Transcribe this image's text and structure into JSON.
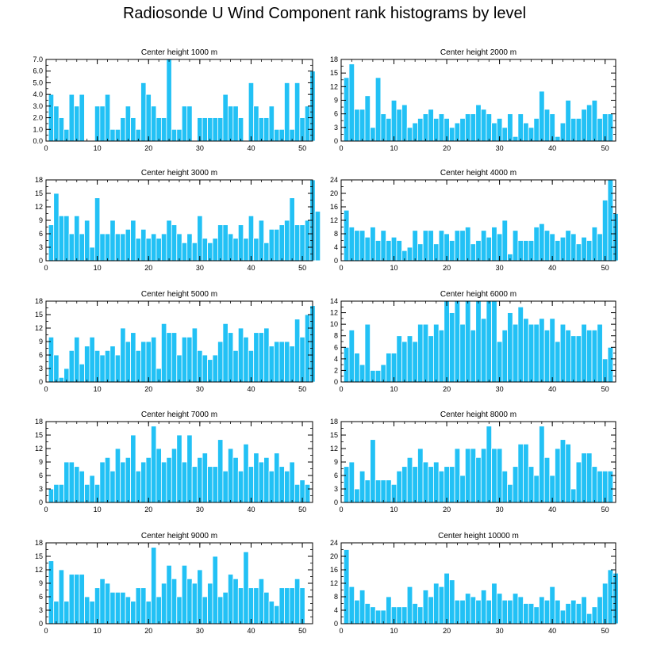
{
  "title": "Radiosonde U Wind Component rank histograms by level",
  "colors": {
    "bar": "#22c1f5",
    "bar_edge": "#ffffff",
    "axis": "#000000"
  },
  "chart_data": [
    {
      "type": "bar",
      "title": "Center height 1000 m",
      "xlim": [
        0,
        52
      ],
      "ylim": [
        0,
        7
      ],
      "xticks": [
        0,
        10,
        20,
        30,
        40,
        50
      ],
      "yticks": [
        0,
        1,
        2,
        3,
        4,
        5,
        6,
        7
      ],
      "ytick_labels": [
        "0.0",
        "1.0",
        "2.0",
        "3.0",
        "4.0",
        "5.0",
        "6.0",
        "7.0"
      ],
      "values": [
        4,
        3,
        2,
        1,
        4,
        3,
        4,
        0,
        0,
        3,
        3,
        4,
        1,
        1,
        2,
        3,
        2,
        1,
        5,
        4,
        3,
        2,
        2,
        7,
        1,
        1,
        3,
        3,
        0,
        2,
        2,
        2,
        2,
        2,
        4,
        3,
        3,
        2,
        0,
        5,
        3,
        2,
        2,
        3,
        1,
        1,
        5,
        1,
        5,
        2,
        3,
        6
      ]
    },
    {
      "type": "bar",
      "title": "Center height 2000 m",
      "xlim": [
        0,
        52
      ],
      "ylim": [
        0,
        18
      ],
      "xticks": [
        0,
        10,
        20,
        30,
        40,
        50
      ],
      "yticks": [
        0,
        3,
        6,
        9,
        12,
        15,
        18
      ],
      "ytick_labels": [
        "0",
        "3",
        "6",
        "9",
        "12",
        "15",
        "18"
      ],
      "values": [
        14,
        17,
        7,
        7,
        10,
        3,
        14,
        6,
        5,
        9,
        7,
        8,
        3,
        4,
        5,
        6,
        7,
        5,
        6,
        5,
        3,
        4,
        5,
        6,
        6,
        8,
        7,
        6,
        4,
        5,
        3,
        6,
        1,
        6,
        4,
        3,
        5,
        11,
        7,
        6,
        1,
        4,
        9,
        5,
        5,
        7,
        8,
        9,
        5,
        6,
        6
      ]
    },
    {
      "type": "bar",
      "title": "Center height 3000 m",
      "xlim": [
        0,
        52
      ],
      "ylim": [
        0,
        18
      ],
      "xticks": [
        0,
        10,
        20,
        30,
        40,
        50
      ],
      "yticks": [
        0,
        3,
        6,
        9,
        12,
        15,
        18
      ],
      "ytick_labels": [
        "0",
        "3",
        "6",
        "9",
        "12",
        "15",
        "18"
      ],
      "values": [
        8,
        15,
        10,
        10,
        6,
        10,
        6,
        9,
        3,
        14,
        6,
        6,
        9,
        6,
        6,
        7,
        9,
        5,
        7,
        5,
        6,
        5,
        6,
        9,
        8,
        6,
        4,
        6,
        4,
        10,
        5,
        4,
        5,
        8,
        8,
        6,
        5,
        8,
        5,
        10,
        5,
        9,
        4,
        7,
        7,
        8,
        9,
        14,
        8,
        8,
        9,
        18,
        11
      ]
    },
    {
      "type": "bar",
      "title": "Center height 4000 m",
      "xlim": [
        0,
        52
      ],
      "ylim": [
        0,
        24
      ],
      "xticks": [
        0,
        10,
        20,
        30,
        40,
        50
      ],
      "yticks": [
        0,
        4,
        8,
        12,
        16,
        20,
        24
      ],
      "ytick_labels": [
        "0",
        "4",
        "8",
        "12",
        "16",
        "20",
        "24"
      ],
      "values": [
        15,
        10,
        9,
        9,
        7,
        10,
        6,
        9,
        6,
        7,
        6,
        3,
        4,
        9,
        5,
        9,
        9,
        5,
        9,
        8,
        6,
        9,
        9,
        10,
        5,
        6,
        9,
        7,
        10,
        8,
        12,
        2,
        9,
        6,
        6,
        6,
        10,
        11,
        9,
        8,
        6,
        7,
        9,
        8,
        5,
        7,
        6,
        10,
        8,
        18,
        24,
        14
      ]
    },
    {
      "type": "bar",
      "title": "Center height 5000 m",
      "xlim": [
        0,
        52
      ],
      "ylim": [
        0,
        18
      ],
      "xticks": [
        0,
        10,
        20,
        30,
        40,
        50
      ],
      "yticks": [
        0,
        3,
        6,
        9,
        12,
        15,
        18
      ],
      "ytick_labels": [
        "0",
        "3",
        "6",
        "9",
        "12",
        "15",
        "18"
      ],
      "values": [
        10,
        6,
        1,
        3,
        7,
        10,
        4,
        8,
        10,
        7,
        6,
        7,
        8,
        6,
        12,
        9,
        11,
        7,
        9,
        9,
        10,
        3,
        13,
        11,
        11,
        6,
        10,
        10,
        12,
        7,
        6,
        5,
        6,
        9,
        13,
        11,
        7,
        12,
        10,
        7,
        11,
        11,
        12,
        8,
        9,
        9,
        9,
        8,
        14,
        10,
        15,
        17
      ]
    },
    {
      "type": "bar",
      "title": "Center height 6000 m",
      "xlim": [
        0,
        52
      ],
      "ylim": [
        0,
        14
      ],
      "xticks": [
        0,
        10,
        20,
        30,
        40,
        50
      ],
      "yticks": [
        0,
        2,
        4,
        6,
        8,
        10,
        12,
        14
      ],
      "ytick_labels": [
        "0",
        "2",
        "4",
        "6",
        "8",
        "10",
        "12",
        "14"
      ],
      "values": [
        6,
        9,
        5,
        3,
        10,
        2,
        2,
        3,
        5,
        5,
        8,
        7,
        8,
        7,
        10,
        10,
        8,
        10,
        9,
        14,
        12,
        14,
        10,
        14,
        9,
        14,
        11,
        14,
        14,
        7,
        9,
        12,
        10,
        13,
        11,
        10,
        10,
        11,
        9,
        11,
        7,
        10,
        9,
        8,
        8,
        10,
        9,
        9,
        10,
        4,
        6
      ]
    },
    {
      "type": "bar",
      "title": "Center height 7000 m",
      "xlim": [
        0,
        52
      ],
      "ylim": [
        0,
        18
      ],
      "xticks": [
        0,
        10,
        20,
        30,
        40,
        50
      ],
      "yticks": [
        0,
        3,
        6,
        9,
        12,
        15,
        18
      ],
      "ytick_labels": [
        "0",
        "3",
        "6",
        "9",
        "12",
        "15",
        "18"
      ],
      "values": [
        3,
        4,
        4,
        9,
        9,
        8,
        7,
        4,
        6,
        4,
        9,
        10,
        7,
        12,
        9,
        10,
        15,
        7,
        9,
        10,
        17,
        12,
        9,
        10,
        12,
        15,
        9,
        15,
        8,
        10,
        11,
        8,
        8,
        14,
        7,
        12,
        10,
        7,
        13,
        8,
        11,
        9,
        10,
        7,
        11,
        8,
        7,
        9,
        4,
        5,
        4
      ]
    },
    {
      "type": "bar",
      "title": "Center height 8000 m",
      "xlim": [
        0,
        52
      ],
      "ylim": [
        0,
        18
      ],
      "xticks": [
        0,
        10,
        20,
        30,
        40,
        50
      ],
      "yticks": [
        0,
        3,
        6,
        9,
        12,
        15,
        18
      ],
      "ytick_labels": [
        "0",
        "3",
        "6",
        "9",
        "12",
        "15",
        "18"
      ],
      "values": [
        8,
        9,
        3,
        7,
        5,
        14,
        5,
        5,
        5,
        4,
        7,
        8,
        10,
        8,
        12,
        9,
        8,
        9,
        7,
        8,
        8,
        12,
        6,
        12,
        12,
        10,
        12,
        17,
        12,
        12,
        7,
        4,
        8,
        13,
        13,
        8,
        6,
        17,
        10,
        6,
        12,
        14,
        13,
        3,
        9,
        11,
        11,
        8,
        7,
        7,
        7
      ]
    },
    {
      "type": "bar",
      "title": "Center height 9000 m",
      "xlim": [
        0,
        52
      ],
      "ylim": [
        0,
        18
      ],
      "xticks": [
        0,
        10,
        20,
        30,
        40,
        50
      ],
      "yticks": [
        0,
        3,
        6,
        9,
        12,
        15,
        18
      ],
      "ytick_labels": [
        "0",
        "3",
        "6",
        "9",
        "12",
        "15",
        "18"
      ],
      "values": [
        14,
        5,
        12,
        5,
        11,
        11,
        11,
        6,
        5,
        8,
        10,
        9,
        7,
        7,
        7,
        6,
        5,
        8,
        8,
        5,
        17,
        6,
        9,
        13,
        10,
        6,
        13,
        10,
        9,
        12,
        6,
        9,
        15,
        6,
        7,
        11,
        10,
        8,
        16,
        8,
        8,
        10,
        7,
        5,
        4,
        8,
        8,
        8,
        10,
        8
      ]
    },
    {
      "type": "bar",
      "title": "Center height 10000 m",
      "xlim": [
        0,
        52
      ],
      "ylim": [
        0,
        24
      ],
      "xticks": [
        0,
        10,
        20,
        30,
        40,
        50
      ],
      "yticks": [
        0,
        4,
        8,
        12,
        16,
        20,
        24
      ],
      "ytick_labels": [
        "0",
        "4",
        "8",
        "12",
        "16",
        "20",
        "24"
      ],
      "values": [
        22,
        11,
        7,
        10,
        6,
        5,
        4,
        4,
        8,
        5,
        5,
        5,
        11,
        6,
        5,
        10,
        8,
        12,
        11,
        15,
        13,
        7,
        7,
        9,
        8,
        7,
        10,
        7,
        12,
        9,
        7,
        7,
        9,
        8,
        6,
        6,
        5,
        8,
        7,
        11,
        7,
        4,
        6,
        7,
        6,
        8,
        3,
        5,
        8,
        12,
        16,
        15
      ]
    }
  ]
}
